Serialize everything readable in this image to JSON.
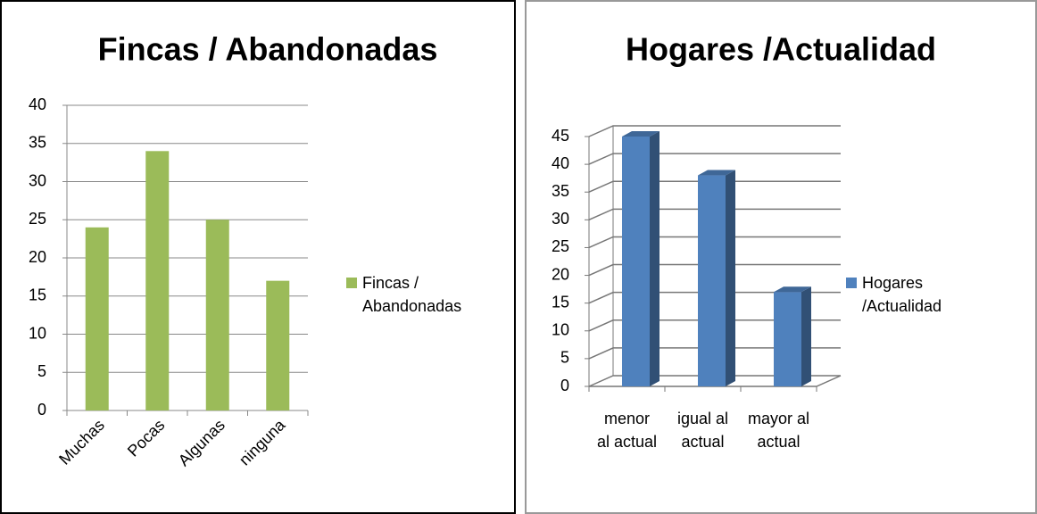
{
  "chart_data": [
    {
      "type": "bar",
      "title": "Fincas / Abandonadas",
      "categories": [
        "Muchas",
        "Pocas",
        "Algunas",
        "ninguna"
      ],
      "series": [
        {
          "name": "Fincas / Abandonadas",
          "color": "#9bbb59",
          "values": [
            24,
            34,
            25,
            17
          ]
        }
      ],
      "ylim": [
        0,
        40
      ],
      "yticks": [
        0,
        5,
        10,
        15,
        20,
        25,
        30,
        35,
        40
      ],
      "grid": true,
      "legend": "right"
    },
    {
      "type": "bar3d",
      "title": "Hogares /Actualidad",
      "categories": [
        "menor al actual",
        "igual al actual",
        "mayor al actual"
      ],
      "series": [
        {
          "name": "Hogares /Actualidad",
          "color": "#4f81bd",
          "values": [
            45,
            38,
            17
          ]
        }
      ],
      "ylim": [
        0,
        45
      ],
      "yticks": [
        0,
        5,
        10,
        15,
        20,
        25,
        30,
        35,
        40,
        45
      ],
      "grid": true,
      "legend": "right"
    }
  ]
}
